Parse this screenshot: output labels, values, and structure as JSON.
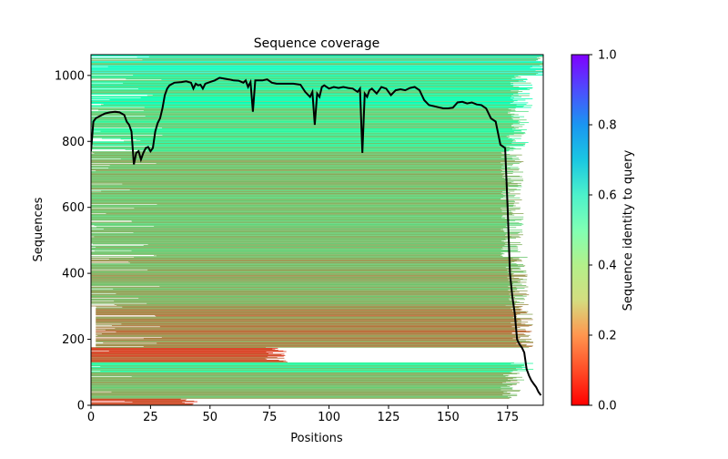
{
  "chart_data": {
    "type": "heatmap",
    "title": "Sequence coverage",
    "xlabel": "Positions",
    "ylabel": "Sequences",
    "xlim": [
      0,
      190
    ],
    "ylim": [
      0,
      1063
    ],
    "xticks": [
      0,
      25,
      50,
      75,
      100,
      125,
      150,
      175
    ],
    "yticks": [
      0,
      200,
      400,
      600,
      800,
      1000
    ],
    "colorbar": {
      "label": "Sequence identity to query",
      "range": [
        0,
        1
      ],
      "ticks": [
        "0.0",
        "0.2",
        "0.4",
        "0.6",
        "0.8",
        "1.0"
      ],
      "colormap": "rainbow_r"
    },
    "grid": false,
    "row_bands": [
      {
        "from": 0,
        "to": 20,
        "identity": 0.08,
        "start": 0,
        "end": 40
      },
      {
        "from": 20,
        "to": 100,
        "identity": 0.25,
        "start": 0,
        "end": 176
      },
      {
        "from": 100,
        "to": 130,
        "identity": 0.45,
        "start": 0,
        "end": 180
      },
      {
        "from": 130,
        "to": 175,
        "identity": 0.1,
        "start": 0,
        "end": 77
      },
      {
        "from": 175,
        "to": 300,
        "identity": 0.18,
        "start": 2,
        "end": 180
      },
      {
        "from": 300,
        "to": 450,
        "identity": 0.24,
        "start": 0,
        "end": 178
      },
      {
        "from": 450,
        "to": 770,
        "identity": 0.27,
        "start": 0,
        "end": 176
      },
      {
        "from": 770,
        "to": 900,
        "identity": 0.4,
        "start": 0,
        "end": 178
      },
      {
        "from": 900,
        "to": 1000,
        "identity": 0.47,
        "start": 0,
        "end": 180
      },
      {
        "from": 1000,
        "to": 1063,
        "identity": 0.56,
        "start": 0,
        "end": 188
      }
    ],
    "series": [
      {
        "name": "coverage",
        "color": "#000000",
        "x": [
          0,
          1,
          2,
          4,
          6,
          8,
          10,
          12,
          14,
          15,
          16,
          17,
          18,
          19,
          20,
          21,
          22,
          23,
          24,
          25,
          26,
          27,
          28,
          29,
          30,
          31,
          32,
          33,
          35,
          38,
          40,
          42,
          43,
          44,
          45,
          46,
          47,
          48,
          50,
          52,
          54,
          56,
          58,
          60,
          62,
          64,
          65,
          66,
          67,
          68,
          69,
          70,
          72,
          74,
          76,
          78,
          80,
          85,
          88,
          90,
          92,
          93,
          94,
          95,
          96,
          97,
          98,
          100,
          102,
          104,
          106,
          108,
          110,
          112,
          113,
          114,
          115,
          116,
          117,
          118,
          120,
          122,
          124,
          125,
          126,
          128,
          130,
          132,
          134,
          136,
          138,
          140,
          142,
          145,
          148,
          150,
          152,
          154,
          156,
          158,
          160,
          162,
          164,
          166,
          168,
          170,
          172,
          174,
          175,
          176,
          177,
          178,
          179,
          180,
          181,
          182,
          183,
          184,
          185,
          186,
          187,
          188,
          189
        ],
        "y": [
          770,
          860,
          870,
          878,
          885,
          888,
          890,
          888,
          880,
          860,
          850,
          830,
          730,
          765,
          770,
          745,
          765,
          780,
          783,
          770,
          780,
          830,
          855,
          870,
          900,
          940,
          960,
          970,
          978,
          980,
          982,
          978,
          960,
          975,
          970,
          972,
          960,
          975,
          980,
          985,
          993,
          990,
          988,
          985,
          984,
          978,
          985,
          965,
          980,
          890,
          985,
          985,
          985,
          988,
          978,
          975,
          975,
          975,
          972,
          950,
          935,
          950,
          850,
          945,
          935,
          965,
          970,
          960,
          965,
          962,
          965,
          962,
          960,
          950,
          960,
          765,
          945,
          935,
          955,
          960,
          945,
          965,
          960,
          950,
          940,
          955,
          958,
          955,
          962,
          965,
          955,
          925,
          910,
          905,
          900,
          900,
          902,
          918,
          920,
          915,
          918,
          912,
          910,
          900,
          870,
          860,
          790,
          780,
          600,
          400,
          330,
          280,
          200,
          185,
          175,
          160,
          110,
          90,
          75,
          65,
          55,
          40,
          30
        ]
      }
    ]
  }
}
